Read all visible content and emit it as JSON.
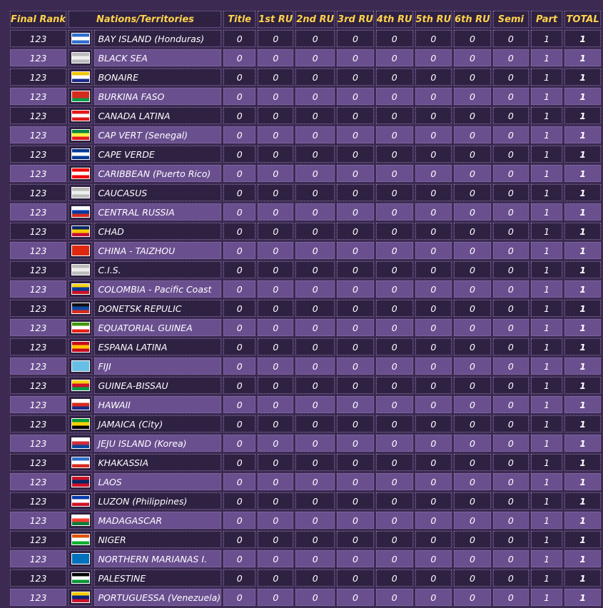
{
  "headers": {
    "rank": "Final Rank",
    "nation": "Nations/Territories",
    "title": "Title",
    "ru1": "1st RU",
    "ru2": "2nd RU",
    "ru3": "3rd RU",
    "ru4": "4th RU",
    "ru5": "5th RU",
    "ru6": "6th RU",
    "semi": "Semi",
    "part": "Part",
    "total": "TOTAL"
  },
  "rows": [
    {
      "rank": "123",
      "name": "BAY ISLAND (Honduras)",
      "flag": "honduras-flag-icon",
      "colors": [
        "#2f6fcf",
        "#ffffff",
        "#2f6fcf"
      ],
      "vals": [
        "0",
        "0",
        "0",
        "0",
        "0",
        "0",
        "0",
        "0",
        "1",
        "1"
      ]
    },
    {
      "rank": "123",
      "name": "BLACK SEA",
      "flag": "generic-flag-icon",
      "colors": [
        "#bbbbbb",
        "#eeeeee",
        "#bbbbbb"
      ],
      "vals": [
        "0",
        "0",
        "0",
        "0",
        "0",
        "0",
        "0",
        "0",
        "1",
        "1"
      ]
    },
    {
      "rank": "123",
      "name": "BONAIRE",
      "flag": "bonaire-flag-icon",
      "colors": [
        "#f4c400",
        "#ffffff",
        "#1a2a8a"
      ],
      "vals": [
        "0",
        "0",
        "0",
        "0",
        "0",
        "0",
        "0",
        "0",
        "1",
        "1"
      ]
    },
    {
      "rank": "123",
      "name": "BURKINA FASO",
      "flag": "burkina-faso-flag-icon",
      "colors": [
        "#d52b1e",
        "#d52b1e",
        "#009e49"
      ],
      "vals": [
        "0",
        "0",
        "0",
        "0",
        "0",
        "0",
        "0",
        "0",
        "1",
        "1"
      ]
    },
    {
      "rank": "123",
      "name": "CANADA LATINA",
      "flag": "canada-flag-icon",
      "colors": [
        "#e0181b",
        "#ffffff",
        "#e0181b"
      ],
      "vals": [
        "0",
        "0",
        "0",
        "0",
        "0",
        "0",
        "0",
        "0",
        "1",
        "1"
      ]
    },
    {
      "rank": "123",
      "name": "CAP VERT (Senegal)",
      "flag": "senegal-flag-icon",
      "colors": [
        "#00853f",
        "#fdef42",
        "#e31b23"
      ],
      "vals": [
        "0",
        "0",
        "0",
        "0",
        "0",
        "0",
        "0",
        "0",
        "1",
        "1"
      ]
    },
    {
      "rank": "123",
      "name": "CAPE VERDE",
      "flag": "cape-verde-flag-icon",
      "colors": [
        "#003893",
        "#ffffff",
        "#003893"
      ],
      "vals": [
        "0",
        "0",
        "0",
        "0",
        "0",
        "0",
        "0",
        "0",
        "1",
        "1"
      ]
    },
    {
      "rank": "123",
      "name": "CARIBBEAN (Puerto Rico)",
      "flag": "puerto-rico-flag-icon",
      "colors": [
        "#ed0000",
        "#ffffff",
        "#ed0000"
      ],
      "vals": [
        "0",
        "0",
        "0",
        "0",
        "0",
        "0",
        "0",
        "0",
        "1",
        "1"
      ]
    },
    {
      "rank": "123",
      "name": "CAUCASUS",
      "flag": "generic-flag-icon",
      "colors": [
        "#bbbbbb",
        "#eeeeee",
        "#bbbbbb"
      ],
      "vals": [
        "0",
        "0",
        "0",
        "0",
        "0",
        "0",
        "0",
        "0",
        "1",
        "1"
      ]
    },
    {
      "rank": "123",
      "name": "CENTRAL RUSSIA",
      "flag": "russia-flag-icon",
      "colors": [
        "#ffffff",
        "#0039a6",
        "#d52b1e"
      ],
      "vals": [
        "0",
        "0",
        "0",
        "0",
        "0",
        "0",
        "0",
        "0",
        "1",
        "1"
      ]
    },
    {
      "rank": "123",
      "name": "CHAD",
      "flag": "chad-flag-icon",
      "colors": [
        "#002664",
        "#fecb00",
        "#c60c30"
      ],
      "vals": [
        "0",
        "0",
        "0",
        "0",
        "0",
        "0",
        "0",
        "0",
        "1",
        "1"
      ]
    },
    {
      "rank": "123",
      "name": "CHINA - TAIZHOU",
      "flag": "china-flag-icon",
      "colors": [
        "#de2910",
        "#de2910",
        "#de2910"
      ],
      "vals": [
        "0",
        "0",
        "0",
        "0",
        "0",
        "0",
        "0",
        "0",
        "1",
        "1"
      ]
    },
    {
      "rank": "123",
      "name": "C.I.S.",
      "flag": "generic-flag-icon",
      "colors": [
        "#bbbbbb",
        "#eeeeee",
        "#bbbbbb"
      ],
      "vals": [
        "0",
        "0",
        "0",
        "0",
        "0",
        "0",
        "0",
        "0",
        "1",
        "1"
      ]
    },
    {
      "rank": "123",
      "name": "COLOMBIA - Pacific Coast",
      "flag": "colombia-flag-icon",
      "colors": [
        "#fcd116",
        "#003893",
        "#ce1126"
      ],
      "vals": [
        "0",
        "0",
        "0",
        "0",
        "0",
        "0",
        "0",
        "0",
        "1",
        "1"
      ]
    },
    {
      "rank": "123",
      "name": "DONETSK REPULIC",
      "flag": "donetsk-flag-icon",
      "colors": [
        "#111111",
        "#0d4aa6",
        "#d52b1e"
      ],
      "vals": [
        "0",
        "0",
        "0",
        "0",
        "0",
        "0",
        "0",
        "0",
        "1",
        "1"
      ]
    },
    {
      "rank": "123",
      "name": "EQUATORIAL GUINEA",
      "flag": "equatorial-guinea-flag-icon",
      "colors": [
        "#3e9a00",
        "#ffffff",
        "#e32118"
      ],
      "vals": [
        "0",
        "0",
        "0",
        "0",
        "0",
        "0",
        "0",
        "0",
        "1",
        "1"
      ]
    },
    {
      "rank": "123",
      "name": "ESPANA LATINA",
      "flag": "spain-flag-icon",
      "colors": [
        "#c60b1e",
        "#ffc400",
        "#c60b1e"
      ],
      "vals": [
        "0",
        "0",
        "0",
        "0",
        "0",
        "0",
        "0",
        "0",
        "1",
        "1"
      ]
    },
    {
      "rank": "123",
      "name": "FIJI",
      "flag": "fiji-flag-icon",
      "colors": [
        "#68bfe5",
        "#68bfe5",
        "#68bfe5"
      ],
      "vals": [
        "0",
        "0",
        "0",
        "0",
        "0",
        "0",
        "0",
        "0",
        "1",
        "1"
      ]
    },
    {
      "rank": "123",
      "name": "GUINEA-BISSAU",
      "flag": "guinea-bissau-flag-icon",
      "colors": [
        "#fcd116",
        "#ce1126",
        "#009e49"
      ],
      "vals": [
        "0",
        "0",
        "0",
        "0",
        "0",
        "0",
        "0",
        "0",
        "1",
        "1"
      ]
    },
    {
      "rank": "123",
      "name": "HAWAII",
      "flag": "hawaii-flag-icon",
      "colors": [
        "#ffffff",
        "#d52b1e",
        "#1a2a8a"
      ],
      "vals": [
        "0",
        "0",
        "0",
        "0",
        "0",
        "0",
        "0",
        "0",
        "1",
        "1"
      ]
    },
    {
      "rank": "123",
      "name": "JAMAICA (City)",
      "flag": "jamaica-flag-icon",
      "colors": [
        "#009b3a",
        "#fed100",
        "#000000"
      ],
      "vals": [
        "0",
        "0",
        "0",
        "0",
        "0",
        "0",
        "0",
        "0",
        "1",
        "1"
      ]
    },
    {
      "rank": "123",
      "name": "JEJU ISLAND (Korea)",
      "flag": "korea-flag-icon",
      "colors": [
        "#ffffff",
        "#cd2e3a",
        "#0047a0"
      ],
      "vals": [
        "0",
        "0",
        "0",
        "0",
        "0",
        "0",
        "0",
        "0",
        "1",
        "1"
      ]
    },
    {
      "rank": "123",
      "name": "KHAKASSIA",
      "flag": "khakassia-flag-icon",
      "colors": [
        "#2f6fcf",
        "#ffffff",
        "#d52b1e"
      ],
      "vals": [
        "0",
        "0",
        "0",
        "0",
        "0",
        "0",
        "0",
        "0",
        "1",
        "1"
      ]
    },
    {
      "rank": "123",
      "name": "LAOS",
      "flag": "laos-flag-icon",
      "colors": [
        "#ce1126",
        "#002868",
        "#ce1126"
      ],
      "vals": [
        "0",
        "0",
        "0",
        "0",
        "0",
        "0",
        "0",
        "0",
        "1",
        "1"
      ]
    },
    {
      "rank": "123",
      "name": "LUZON (Philippines)",
      "flag": "philippines-flag-icon",
      "colors": [
        "#0038a8",
        "#ffffff",
        "#ce1126"
      ],
      "vals": [
        "0",
        "0",
        "0",
        "0",
        "0",
        "0",
        "0",
        "0",
        "1",
        "1"
      ]
    },
    {
      "rank": "123",
      "name": "MADAGASCAR",
      "flag": "madagascar-flag-icon",
      "colors": [
        "#ffffff",
        "#fc3d32",
        "#007e3a"
      ],
      "vals": [
        "0",
        "0",
        "0",
        "0",
        "0",
        "0",
        "0",
        "0",
        "1",
        "1"
      ]
    },
    {
      "rank": "123",
      "name": "NIGER",
      "flag": "niger-flag-icon",
      "colors": [
        "#e05206",
        "#ffffff",
        "#0db02b"
      ],
      "vals": [
        "0",
        "0",
        "0",
        "0",
        "0",
        "0",
        "0",
        "0",
        "1",
        "1"
      ]
    },
    {
      "rank": "123",
      "name": "NORTHERN MARIANAS I.",
      "flag": "northern-marianas-flag-icon",
      "colors": [
        "#0071bc",
        "#0071bc",
        "#0071bc"
      ],
      "vals": [
        "0",
        "0",
        "0",
        "0",
        "0",
        "0",
        "0",
        "0",
        "1",
        "1"
      ]
    },
    {
      "rank": "123",
      "name": "PALESTINE",
      "flag": "palestine-flag-icon",
      "colors": [
        "#000000",
        "#ffffff",
        "#009736"
      ],
      "vals": [
        "0",
        "0",
        "0",
        "0",
        "0",
        "0",
        "0",
        "0",
        "1",
        "1"
      ]
    },
    {
      "rank": "123",
      "name": "PORTUGUESSA (Venezuela)",
      "flag": "venezuela-flag-icon",
      "colors": [
        "#ffcc00",
        "#00247d",
        "#cf142b"
      ],
      "vals": [
        "0",
        "0",
        "0",
        "0",
        "0",
        "0",
        "0",
        "0",
        "1",
        "1"
      ]
    }
  ]
}
